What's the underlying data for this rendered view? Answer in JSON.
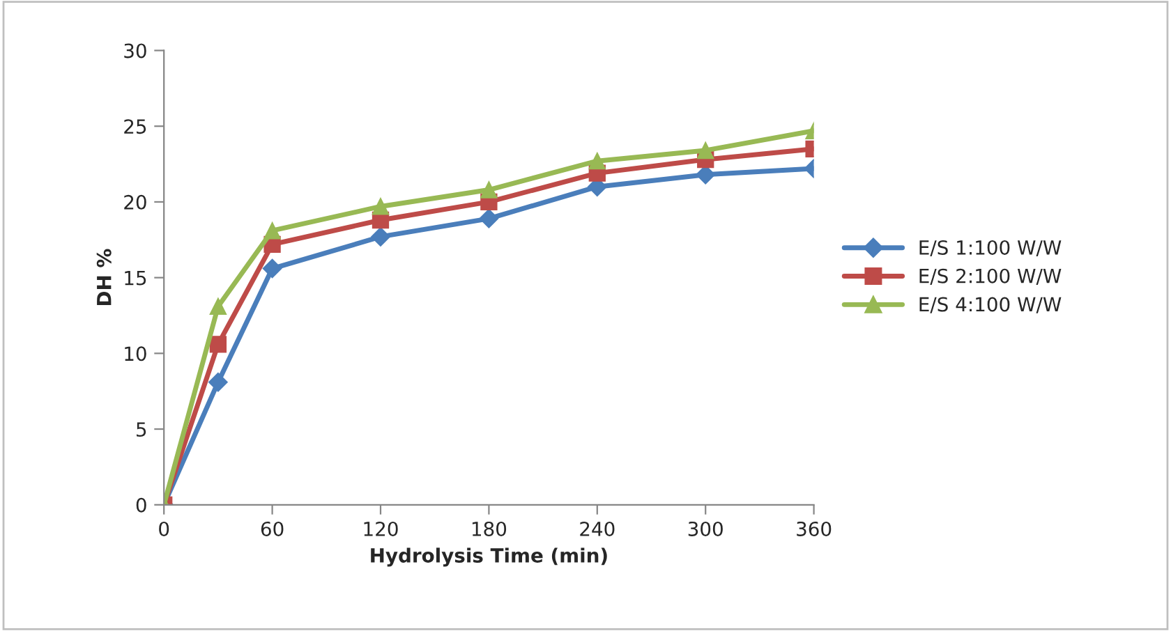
{
  "chart_data": {
    "type": "line",
    "xlabel": "Hydrolysis Time (min)",
    "ylabel": "DH %",
    "x": [
      0,
      30,
      60,
      120,
      180,
      240,
      300,
      360
    ],
    "xlim": [
      0,
      360
    ],
    "xticks": [
      0,
      60,
      120,
      180,
      240,
      300,
      360
    ],
    "ylim": [
      0,
      30
    ],
    "yticks": [
      0,
      5,
      10,
      15,
      20,
      25,
      30
    ],
    "grid": false,
    "legend": "right",
    "line_style": "solid",
    "series": [
      {
        "name": "E/S 1:100 W/W",
        "color": "#4a7ebb",
        "marker": "diamond",
        "values": [
          0,
          8.1,
          15.6,
          17.7,
          18.9,
          21.0,
          21.8,
          22.2
        ]
      },
      {
        "name": "E/S 2:100 W/W",
        "color": "#be4b48",
        "marker": "square",
        "values": [
          0,
          10.6,
          17.2,
          18.8,
          20.0,
          21.9,
          22.8,
          23.5
        ]
      },
      {
        "name": "E/S 4:100 W/W",
        "color": "#98b954",
        "marker": "triangle",
        "values": [
          0,
          13.1,
          18.1,
          19.7,
          20.8,
          22.7,
          23.4,
          24.7
        ]
      }
    ]
  }
}
